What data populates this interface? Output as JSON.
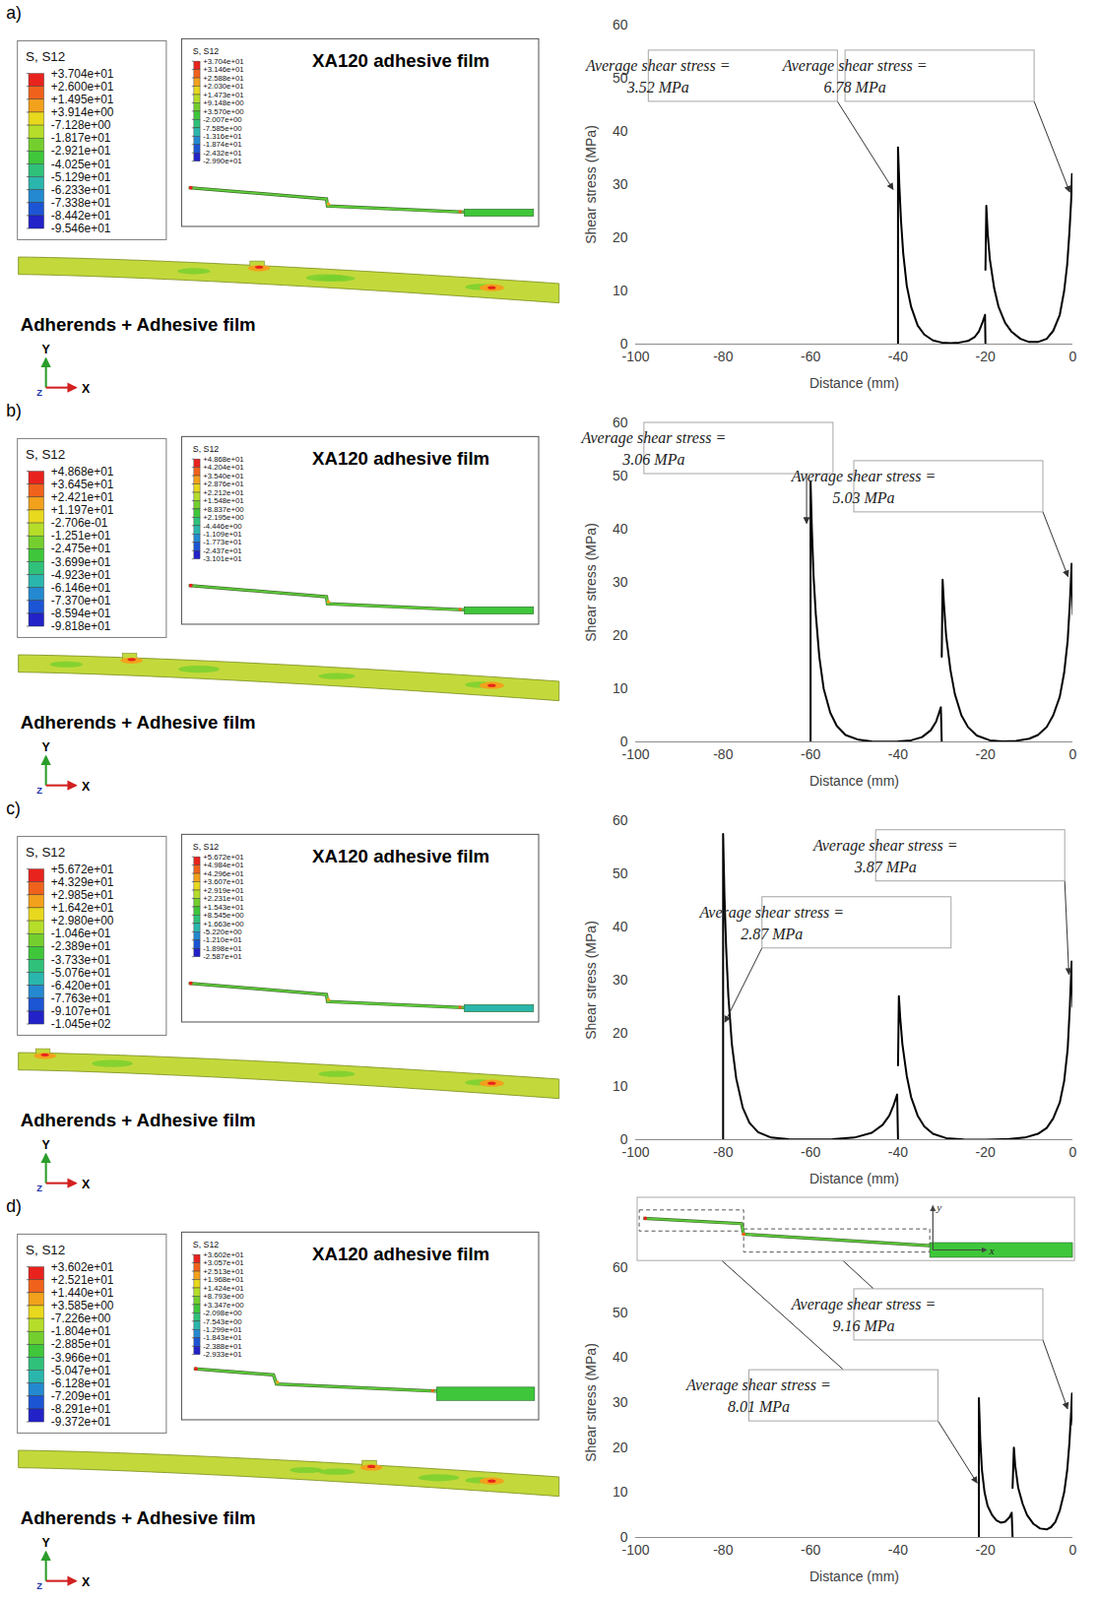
{
  "chart_data": [
    {
      "type": "line",
      "panel_label": "a)",
      "x_label": "Distance (mm)",
      "y_label": "Shear stress (MPa)",
      "xlim": [
        -100,
        0
      ],
      "xticks": [
        -100,
        -80,
        -60,
        -40,
        -20,
        0
      ],
      "ylim": [
        0,
        60
      ],
      "yticks": [
        0,
        10,
        20,
        30,
        40,
        50,
        60
      ],
      "grid": false,
      "color": "#000000",
      "x": [
        -40,
        -40,
        -39.7,
        -39.3,
        -38.8,
        -38,
        -37,
        -35.5,
        -34,
        -32,
        -30,
        -28,
        -26,
        -24,
        -22.5,
        -21.5,
        -20.8,
        -20.3,
        -20.1,
        -20,
        -20,
        -20,
        -19.8,
        -19.5,
        -19,
        -18,
        -17,
        -15.5,
        -14,
        -12,
        -10,
        -8,
        -6,
        -4.5,
        -3,
        -2,
        -1.3,
        -0.8,
        -0.4,
        -0.2,
        0
      ],
      "values": [
        0,
        37,
        30,
        23,
        17,
        11,
        7,
        3.5,
        1.8,
        0.7,
        0.3,
        0.2,
        0.3,
        0.6,
        1.3,
        2.4,
        3.8,
        5,
        5.5,
        0,
        null,
        14,
        26,
        21,
        16,
        10.5,
        7,
        4,
        2.3,
        1,
        0.4,
        0.4,
        1,
        2.5,
        5.5,
        10,
        15,
        21,
        27,
        32,
        28
      ],
      "annotations": [
        {
          "text": "Average shear stress = 3.52 MPa",
          "x": -41,
          "y": 29
        },
        {
          "text": "Average shear stress = 6.78 MPa",
          "x": -0.6,
          "y": 28.5
        }
      ],
      "contour": {
        "legend_title": "S, S12",
        "colorbar_ticks": [
          {
            "value": 37.04,
            "label": "+3.704e+01"
          },
          {
            "value": 26.0,
            "label": "+2.600e+01"
          },
          {
            "value": 14.95,
            "label": "+1.495e+01"
          },
          {
            "value": 3.914,
            "label": "+3.914e+00"
          },
          {
            "value": -7.128,
            "label": "-7.128e+00"
          },
          {
            "value": -18.17,
            "label": "-1.817e+01"
          },
          {
            "value": -29.21,
            "label": "-2.921e+01"
          },
          {
            "value": -40.25,
            "label": "-4.025e+01"
          },
          {
            "value": -51.29,
            "label": "-5.129e+01"
          },
          {
            "value": -62.33,
            "label": "-6.233e+01"
          },
          {
            "value": -73.38,
            "label": "-7.338e+01"
          },
          {
            "value": -84.42,
            "label": "-8.442e+01"
          },
          {
            "value": -95.46,
            "label": "-9.546e+01"
          }
        ],
        "inset_title": "XA120 adhesive film",
        "inset_legend_title": "S, S12",
        "inset_colorbar_ticks": [
          {
            "value": 37.04,
            "label": "+3.704e+01"
          },
          {
            "value": 31.46,
            "label": "+3.146e+01"
          },
          {
            "value": 25.88,
            "label": "+2.588e+01"
          },
          {
            "value": 20.3,
            "label": "+2.030e+01"
          },
          {
            "value": 14.73,
            "label": "+1.473e+01"
          },
          {
            "value": 9.148,
            "label": "+9.148e+00"
          },
          {
            "value": 3.57,
            "label": "+3.570e+00"
          },
          {
            "value": -2.007,
            "label": "-2.007e+00"
          },
          {
            "value": -7.585,
            "label": "-7.585e+00"
          },
          {
            "value": -13.16,
            "label": "-1.316e+01"
          },
          {
            "value": -18.74,
            "label": "-1.874e+01"
          },
          {
            "value": -24.32,
            "label": "-2.432e+01"
          },
          {
            "value": -29.9,
            "label": "-2.990e+01"
          }
        ],
        "label": "Adherends + Adhesive film"
      },
      "triad": {
        "x": "X",
        "y": "Y",
        "z": "Z"
      }
    },
    {
      "type": "line",
      "panel_label": "b)",
      "x_label": "Distance (mm)",
      "y_label": "Shear stress (MPa)",
      "xlim": [
        -100,
        0
      ],
      "xticks": [
        -100,
        -80,
        -60,
        -40,
        -20,
        0
      ],
      "ylim": [
        0,
        60
      ],
      "yticks": [
        0,
        10,
        20,
        30,
        40,
        50,
        60
      ],
      "grid": false,
      "color": "#000000",
      "x": [
        -60,
        -60,
        -59.7,
        -59.3,
        -58.8,
        -58,
        -57,
        -55.5,
        -54,
        -52,
        -49,
        -46,
        -43,
        -40,
        -37,
        -34.5,
        -32.5,
        -31.3,
        -30.6,
        -30.2,
        -30,
        -30,
        -30,
        -29.8,
        -29.5,
        -29,
        -28,
        -27,
        -25.5,
        -24,
        -22,
        -19,
        -16,
        -13,
        -10,
        -8,
        -6,
        -4.5,
        -3,
        -2,
        -1.2,
        -0.7,
        -0.3,
        0
      ],
      "values": [
        0,
        49,
        40,
        31,
        24,
        16,
        10,
        5.5,
        3,
        1.3,
        0.4,
        0.1,
        0.05,
        0.1,
        0.3,
        0.9,
        2.2,
        3.8,
        5.5,
        6.5,
        0,
        null,
        16,
        30.5,
        26,
        20,
        13.5,
        9,
        5,
        2.8,
        1.2,
        0.3,
        0.1,
        0.2,
        0.6,
        1.3,
        2.8,
        5,
        8.5,
        13,
        19,
        26,
        33.5,
        24
      ],
      "annotations": [
        {
          "text": "Average shear stress = 3.06 MPa",
          "x": -60.8,
          "y": 41
        },
        {
          "text": "Average shear stress = 5.03 MPa",
          "x": -1,
          "y": 31
        }
      ],
      "contour": {
        "legend_title": "S, S12",
        "colorbar_ticks": [
          {
            "value": 48.68,
            "label": "+4.868e+01"
          },
          {
            "value": 36.45,
            "label": "+3.645e+01"
          },
          {
            "value": 24.21,
            "label": "+2.421e+01"
          },
          {
            "value": 11.97,
            "label": "+1.197e+01"
          },
          {
            "value": -0.2706,
            "label": "-2.706e-01"
          },
          {
            "value": -12.51,
            "label": "-1.251e+01"
          },
          {
            "value": -24.75,
            "label": "-2.475e+01"
          },
          {
            "value": -36.99,
            "label": "-3.699e+01"
          },
          {
            "value": -49.23,
            "label": "-4.923e+01"
          },
          {
            "value": -61.46,
            "label": "-6.146e+01"
          },
          {
            "value": -73.7,
            "label": "-7.370e+01"
          },
          {
            "value": -85.94,
            "label": "-8.594e+01"
          },
          {
            "value": -98.18,
            "label": "-9.818e+01"
          }
        ],
        "inset_title": "XA120 adhesive film",
        "inset_legend_title": "S, S12",
        "inset_colorbar_ticks": [
          {
            "value": 48.68,
            "label": "+4.868e+01"
          },
          {
            "value": 42.04,
            "label": "+4.204e+01"
          },
          {
            "value": 35.4,
            "label": "+3.540e+01"
          },
          {
            "value": 28.76,
            "label": "+2.876e+01"
          },
          {
            "value": 22.12,
            "label": "+2.212e+01"
          },
          {
            "value": 15.48,
            "label": "+1.548e+01"
          },
          {
            "value": 8.837,
            "label": "+8.837e+00"
          },
          {
            "value": 2.195,
            "label": "+2.195e+00"
          },
          {
            "value": -4.446,
            "label": "-4.446e+00"
          },
          {
            "value": -11.09,
            "label": "-1.109e+01"
          },
          {
            "value": -17.73,
            "label": "-1.773e+01"
          },
          {
            "value": -24.37,
            "label": "-2.437e+01"
          },
          {
            "value": -31.01,
            "label": "-3.101e+01"
          }
        ],
        "label": "Adherends + Adhesive film"
      },
      "triad": {
        "x": "X",
        "y": "Y",
        "z": "Z"
      }
    },
    {
      "type": "line",
      "panel_label": "c)",
      "x_label": "Distance (mm)",
      "y_label": "Shear stress (MPa)",
      "xlim": [
        -100,
        0
      ],
      "xticks": [
        -100,
        -80,
        -60,
        -40,
        -20,
        0
      ],
      "ylim": [
        0,
        60
      ],
      "yticks": [
        0,
        10,
        20,
        30,
        40,
        50,
        60
      ],
      "grid": false,
      "color": "#000000",
      "x": [
        -80,
        -80,
        -79.7,
        -79.3,
        -78.8,
        -78,
        -77,
        -75.5,
        -74,
        -72,
        -69,
        -65,
        -60,
        -55,
        -50,
        -46,
        -43.5,
        -42,
        -41,
        -40.4,
        -40.2,
        -40,
        -40,
        -40,
        -39.8,
        -39.5,
        -39,
        -38,
        -37,
        -35.5,
        -34,
        -32,
        -29,
        -25,
        -20,
        -15,
        -11,
        -8,
        -6,
        -4.5,
        -3,
        -2,
        -1.2,
        -0.7,
        -0.3,
        0
      ],
      "values": [
        0,
        57.5,
        46,
        36,
        27,
        18,
        11.5,
        6,
        3.2,
        1.4,
        0.4,
        0.1,
        0.05,
        0.1,
        0.4,
        1.3,
        2.8,
        4.5,
        6.5,
        8,
        8.5,
        0,
        null,
        14,
        27,
        23,
        18,
        12,
        8,
        4.5,
        2.5,
        1.1,
        0.3,
        0.05,
        0.02,
        0.1,
        0.4,
        1.1,
        2.2,
        4,
        7,
        11,
        17,
        25,
        33.5,
        25
      ],
      "annotations": [
        {
          "text": "Average shear stress = 2.87 MPa",
          "x": -79.5,
          "y": 22
        },
        {
          "text": "Average shear stress = 3.87 MPa",
          "x": -0.8,
          "y": 31
        }
      ],
      "contour": {
        "legend_title": "S, S12",
        "colorbar_ticks": [
          {
            "value": 56.72,
            "label": "+5.672e+01"
          },
          {
            "value": 43.29,
            "label": "+4.329e+01"
          },
          {
            "value": 29.85,
            "label": "+2.985e+01"
          },
          {
            "value": 16.42,
            "label": "+1.642e+01"
          },
          {
            "value": 2.98,
            "label": "+2.980e+00"
          },
          {
            "value": -10.46,
            "label": "-1.046e+01"
          },
          {
            "value": -23.89,
            "label": "-2.389e+01"
          },
          {
            "value": -37.33,
            "label": "-3.733e+01"
          },
          {
            "value": -50.76,
            "label": "-5.076e+01"
          },
          {
            "value": -64.2,
            "label": "-6.420e+01"
          },
          {
            "value": -77.63,
            "label": "-7.763e+01"
          },
          {
            "value": -91.07,
            "label": "-9.107e+01"
          },
          {
            "value": -104.5,
            "label": "-1.045e+02"
          }
        ],
        "inset_title": "XA120 adhesive film",
        "inset_legend_title": "S, S12",
        "inset_colorbar_ticks": [
          {
            "value": 56.72,
            "label": "+5.672e+01"
          },
          {
            "value": 49.84,
            "label": "+4.984e+01"
          },
          {
            "value": 42.96,
            "label": "+4.296e+01"
          },
          {
            "value": 36.07,
            "label": "+3.607e+01"
          },
          {
            "value": 29.19,
            "label": "+2.919e+01"
          },
          {
            "value": 22.31,
            "label": "+2.231e+01"
          },
          {
            "value": 15.43,
            "label": "+1.543e+01"
          },
          {
            "value": 8.545,
            "label": "+8.545e+00"
          },
          {
            "value": 1.663,
            "label": "+1.663e+00"
          },
          {
            "value": -5.22,
            "label": "-5.220e+00"
          },
          {
            "value": -12.1,
            "label": "-1.210e+01"
          },
          {
            "value": -18.98,
            "label": "-1.898e+01"
          },
          {
            "value": -25.87,
            "label": "-2.587e+01"
          }
        ],
        "label": "Adherends + Adhesive film"
      },
      "triad": {
        "x": "X",
        "y": "Y",
        "z": "Z"
      }
    },
    {
      "type": "line",
      "panel_label": "d)",
      "x_label": "Distance (mm)",
      "y_label": "Shear stress (MPa)",
      "xlim": [
        -100,
        0
      ],
      "xticks": [
        -100,
        -80,
        -60,
        -40,
        -20,
        0
      ],
      "ylim": [
        0,
        60
      ],
      "yticks": [
        0,
        10,
        20,
        30,
        40,
        50,
        60
      ],
      "grid": false,
      "color": "#000000",
      "x": [
        -21.5,
        -21.5,
        -21.2,
        -20.8,
        -20.2,
        -19.5,
        -18.5,
        -17.5,
        -16.5,
        -15.5,
        -14.5,
        -14,
        -13.8,
        -13.8,
        -13.8,
        -13.5,
        -13.2,
        -12.5,
        -11.5,
        -10.5,
        -9,
        -7.5,
        -6,
        -5,
        -4,
        -3,
        -2,
        -1.3,
        -0.8,
        -0.4,
        -0.2,
        0
      ],
      "values": [
        0,
        31,
        22,
        15,
        10,
        7,
        5,
        3.8,
        3.3,
        3.5,
        4.5,
        5.5,
        0,
        null,
        11,
        20,
        16,
        11,
        7.5,
        5,
        3,
        2,
        1.8,
        2.3,
        3.5,
        6,
        10,
        15,
        21,
        28,
        32,
        25
      ],
      "annotations": [
        {
          "text": "Average shear stress = 8.01 MPa",
          "x": -21.8,
          "y": 12
        },
        {
          "text": "Average shear stress = 9.16 MPa",
          "x": -1.1,
          "y": 28.5
        }
      ],
      "inset_axes": {
        "x": "x",
        "y": "y"
      },
      "contour": {
        "legend_title": "S, S12",
        "colorbar_ticks": [
          {
            "value": 36.02,
            "label": "+3.602e+01"
          },
          {
            "value": 25.21,
            "label": "+2.521e+01"
          },
          {
            "value": 14.4,
            "label": "+1.440e+01"
          },
          {
            "value": 3.585,
            "label": "+3.585e+00"
          },
          {
            "value": -7.226,
            "label": "-7.226e+00"
          },
          {
            "value": -18.04,
            "label": "-1.804e+01"
          },
          {
            "value": -28.85,
            "label": "-2.885e+01"
          },
          {
            "value": -39.66,
            "label": "-3.966e+01"
          },
          {
            "value": -50.47,
            "label": "-5.047e+01"
          },
          {
            "value": -61.28,
            "label": "-6.128e+01"
          },
          {
            "value": -72.09,
            "label": "-7.209e+01"
          },
          {
            "value": -82.91,
            "label": "-8.291e+01"
          },
          {
            "value": -93.72,
            "label": "-9.372e+01"
          }
        ],
        "inset_title": "XA120 adhesive film",
        "inset_legend_title": "S, S12",
        "inset_colorbar_ticks": [
          {
            "value": 36.02,
            "label": "+3.602e+01"
          },
          {
            "value": 30.57,
            "label": "+3.057e+01"
          },
          {
            "value": 25.13,
            "label": "+2.513e+01"
          },
          {
            "value": 19.68,
            "label": "+1.968e+01"
          },
          {
            "value": 14.24,
            "label": "+1.424e+01"
          },
          {
            "value": 8.793,
            "label": "+8.793e+00"
          },
          {
            "value": 3.347,
            "label": "+3.347e+00"
          },
          {
            "value": -2.098,
            "label": "-2.098e+00"
          },
          {
            "value": -7.543,
            "label": "-7.543e+00"
          },
          {
            "value": -12.99,
            "label": "-1.299e+01"
          },
          {
            "value": -18.43,
            "label": "-1.843e+01"
          },
          {
            "value": -23.88,
            "label": "-2.388e+01"
          },
          {
            "value": -29.33,
            "label": "-2.933e+01"
          }
        ],
        "label": "Adherends + Adhesive film"
      },
      "triad": {
        "x": "X",
        "y": "Y",
        "z": "Z"
      }
    }
  ]
}
